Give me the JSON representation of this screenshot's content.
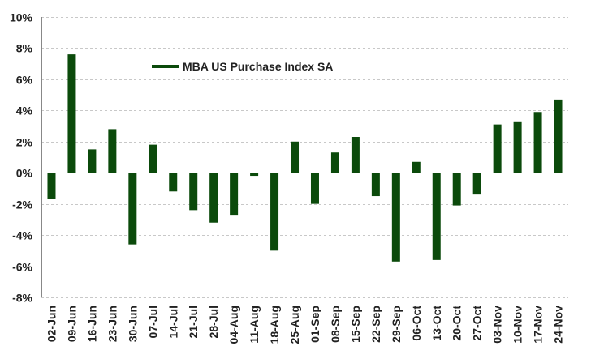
{
  "chart_data": {
    "type": "bar",
    "categories": [
      "02-Jun",
      "09-Jun",
      "16-Jun",
      "23-Jun",
      "30-Jun",
      "07-Jul",
      "14-Jul",
      "21-Jul",
      "28-Jul",
      "04-Aug",
      "11-Aug",
      "18-Aug",
      "25-Aug",
      "01-Sep",
      "08-Sep",
      "15-Sep",
      "22-Sep",
      "29-Sep",
      "06-Oct",
      "13-Oct",
      "20-Oct",
      "27-Oct",
      "03-Nov",
      "10-Nov",
      "17-Nov",
      "24-Nov"
    ],
    "series": [
      {
        "name": "MBA US Purchase Index SA",
        "color": "#0b4a0b",
        "values": [
          -1.7,
          7.6,
          1.5,
          2.8,
          -4.6,
          1.8,
          -1.2,
          -2.4,
          -3.2,
          -2.7,
          -0.2,
          -5.0,
          2.0,
          -2.0,
          1.3,
          2.3,
          -1.5,
          -5.7,
          0.7,
          -5.6,
          -2.1,
          -1.4,
          3.1,
          3.3,
          3.9,
          4.7
        ]
      }
    ],
    "ylim": [
      -8,
      10
    ],
    "yticks": [
      -8,
      -6,
      -4,
      -2,
      0,
      2,
      4,
      6,
      8,
      10
    ],
    "ytick_labels": [
      "-8%",
      "-6%",
      "-4%",
      "-2%",
      "0%",
      "2%",
      "4%",
      "6%",
      "8%",
      "10%"
    ],
    "grid": true,
    "legend_placement": "top-left"
  }
}
